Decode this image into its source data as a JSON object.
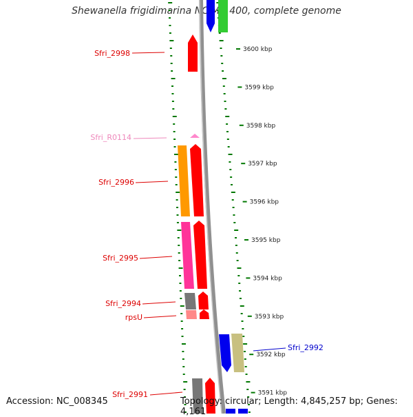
{
  "title": "Shewanella frigidimarina NCIMB 400, complete genome",
  "footer": {
    "accession": "Accession: NC_008345",
    "topology": "Topology: circular; Length: 4,845,257 bp; Genes: 4,161"
  },
  "colors": {
    "cds": "#ff0000",
    "trna_pink": "#ff88cc",
    "orange": "#ff9900",
    "magenta": "#ff3399",
    "gray": "#808080",
    "blue": "#0000ee",
    "khaki": "#c8c080",
    "green": "#33cc33",
    "tick_green": "#007700",
    "backbone": "#909090"
  },
  "scale": {
    "ticks": [
      "3600 kbp",
      "3599 kbp",
      "3598 kbp",
      "3597 kbp",
      "3596 kbp",
      "3595 kbp",
      "3594 kbp",
      "3593 kbp",
      "3592 kbp",
      "3591 kbp"
    ]
  },
  "gene_labels": [
    {
      "name": "Sfri_2998",
      "color": "#dd0000"
    },
    {
      "name": "Sfri_R0114",
      "color": "#ee88bb"
    },
    {
      "name": "Sfri_2996",
      "color": "#dd0000"
    },
    {
      "name": "Sfri_2995",
      "color": "#dd0000"
    },
    {
      "name": "Sfri_2994",
      "color": "#dd0000"
    },
    {
      "name": "rpsU",
      "color": "#dd0000"
    },
    {
      "name": "Sfri_2992",
      "color": "#0000cc"
    },
    {
      "name": "Sfri_2991",
      "color": "#dd0000"
    }
  ]
}
